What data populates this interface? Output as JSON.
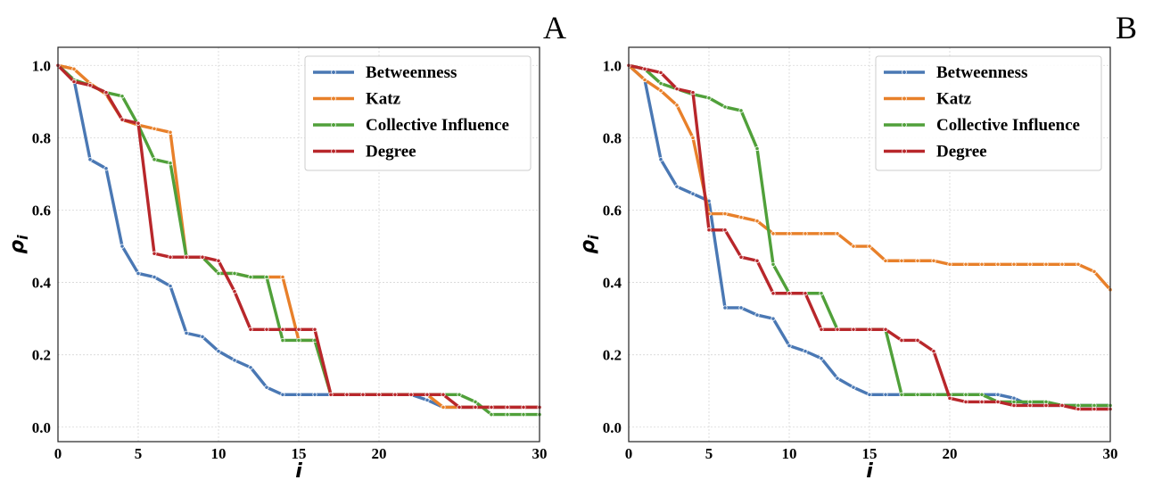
{
  "chart_data": [
    {
      "panel_label": "A",
      "type": "line",
      "xlabel": "i",
      "ylabel": "ρ_i",
      "xlim": [
        0,
        30
      ],
      "ylim": [
        -0.04,
        1.05
      ],
      "xticks": [
        0,
        5,
        10,
        15,
        20,
        30
      ],
      "yticks": [
        0.0,
        0.2,
        0.4,
        0.6,
        0.8,
        1.0
      ],
      "grid": true,
      "legend_position": "top-right",
      "x": [
        0,
        1,
        2,
        3,
        4,
        5,
        6,
        7,
        8,
        9,
        10,
        11,
        12,
        13,
        14,
        15,
        16,
        17,
        18,
        19,
        20,
        21,
        22,
        23,
        24,
        25,
        26,
        27,
        28,
        29,
        30
      ],
      "series": [
        {
          "name": "Betweenness",
          "color": "#4a78b4",
          "values": [
            1.0,
            0.96,
            0.74,
            0.715,
            0.5,
            0.425,
            0.415,
            0.39,
            0.26,
            0.25,
            0.21,
            0.185,
            0.165,
            0.11,
            0.09,
            0.09,
            0.09,
            0.09,
            0.09,
            0.09,
            0.09,
            0.09,
            0.09,
            0.075,
            0.055,
            0.055,
            0.055,
            0.055,
            0.055,
            0.055,
            0.055
          ]
        },
        {
          "name": "Katz",
          "color": "#e8802a",
          "values": [
            1.0,
            0.99,
            0.95,
            0.92,
            0.85,
            0.835,
            0.825,
            0.815,
            0.47,
            0.47,
            0.425,
            0.425,
            0.415,
            0.415,
            0.415,
            0.24,
            0.24,
            0.09,
            0.09,
            0.09,
            0.09,
            0.09,
            0.09,
            0.09,
            0.055,
            0.055,
            0.055,
            0.055,
            0.055,
            0.055,
            0.055
          ]
        },
        {
          "name": "Collective Influence",
          "color": "#50a03a",
          "values": [
            1.0,
            0.96,
            0.945,
            0.925,
            0.915,
            0.835,
            0.74,
            0.73,
            0.47,
            0.47,
            0.425,
            0.425,
            0.415,
            0.415,
            0.24,
            0.24,
            0.24,
            0.09,
            0.09,
            0.09,
            0.09,
            0.09,
            0.09,
            0.09,
            0.09,
            0.09,
            0.07,
            0.035,
            0.035,
            0.035,
            0.035
          ]
        },
        {
          "name": "Degree",
          "color": "#b8272b",
          "values": [
            1.0,
            0.955,
            0.945,
            0.925,
            0.85,
            0.84,
            0.48,
            0.47,
            0.47,
            0.47,
            0.46,
            0.375,
            0.27,
            0.27,
            0.27,
            0.27,
            0.27,
            0.09,
            0.09,
            0.09,
            0.09,
            0.09,
            0.09,
            0.09,
            0.09,
            0.055,
            0.055,
            0.055,
            0.055,
            0.055,
            0.055
          ]
        }
      ]
    },
    {
      "panel_label": "B",
      "type": "line",
      "xlabel": "i",
      "ylabel": "ρ_i",
      "xlim": [
        0,
        30
      ],
      "ylim": [
        -0.04,
        1.05
      ],
      "xticks": [
        0,
        5,
        10,
        15,
        20,
        30
      ],
      "yticks": [
        0.0,
        0.2,
        0.4,
        0.6,
        0.8,
        1.0
      ],
      "grid": true,
      "legend_position": "top-right",
      "x": [
        0,
        1,
        2,
        3,
        4,
        5,
        6,
        7,
        8,
        9,
        10,
        11,
        12,
        13,
        14,
        15,
        16,
        17,
        18,
        19,
        20,
        21,
        22,
        23,
        24,
        25,
        26,
        27,
        28,
        29,
        30
      ],
      "series": [
        {
          "name": "Betweenness",
          "color": "#4a78b4",
          "values": [
            1.0,
            0.96,
            0.74,
            0.665,
            0.645,
            0.625,
            0.33,
            0.33,
            0.31,
            0.3,
            0.225,
            0.21,
            0.19,
            0.135,
            0.11,
            0.09,
            0.09,
            0.09,
            0.09,
            0.09,
            0.09,
            0.09,
            0.09,
            0.09,
            0.08,
            0.06,
            0.06,
            0.06,
            0.06,
            0.06,
            0.06
          ]
        },
        {
          "name": "Katz",
          "color": "#e8802a",
          "values": [
            1.0,
            0.96,
            0.93,
            0.89,
            0.8,
            0.59,
            0.59,
            0.58,
            0.57,
            0.535,
            0.535,
            0.535,
            0.535,
            0.535,
            0.5,
            0.5,
            0.46,
            0.46,
            0.46,
            0.46,
            0.45,
            0.45,
            0.45,
            0.45,
            0.45,
            0.45,
            0.45,
            0.45,
            0.45,
            0.43,
            0.38
          ]
        },
        {
          "name": "Collective Influence",
          "color": "#50a03a",
          "values": [
            1.0,
            0.99,
            0.95,
            0.935,
            0.92,
            0.91,
            0.885,
            0.875,
            0.77,
            0.45,
            0.37,
            0.37,
            0.37,
            0.27,
            0.27,
            0.27,
            0.27,
            0.09,
            0.09,
            0.09,
            0.09,
            0.09,
            0.09,
            0.07,
            0.07,
            0.07,
            0.07,
            0.06,
            0.06,
            0.06,
            0.06
          ]
        },
        {
          "name": "Degree",
          "color": "#b8272b",
          "values": [
            1.0,
            0.99,
            0.98,
            0.935,
            0.925,
            0.545,
            0.545,
            0.47,
            0.46,
            0.37,
            0.37,
            0.37,
            0.27,
            0.27,
            0.27,
            0.27,
            0.27,
            0.24,
            0.24,
            0.21,
            0.08,
            0.07,
            0.07,
            0.07,
            0.06,
            0.06,
            0.06,
            0.06,
            0.05,
            0.05,
            0.05
          ]
        }
      ]
    }
  ]
}
